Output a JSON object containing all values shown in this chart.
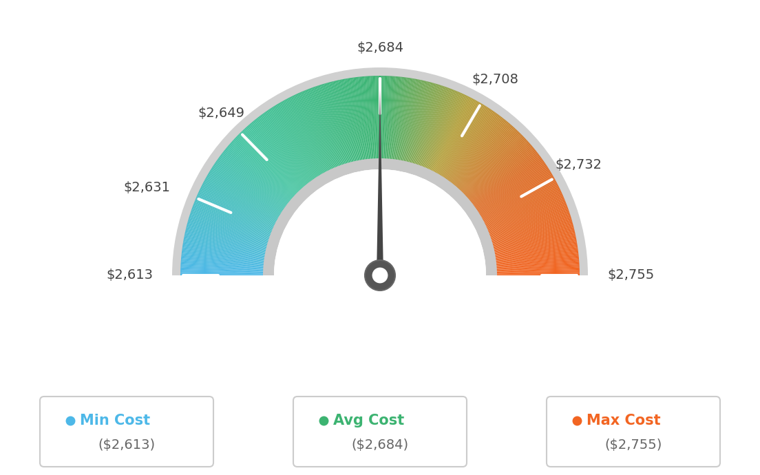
{
  "min_val": 2613,
  "max_val": 2755,
  "avg_val": 2684,
  "needle_value": 2684,
  "tick_labels": [
    "$2,613",
    "$2,631",
    "$2,649",
    "$2,684",
    "$2,708",
    "$2,732",
    "$2,755"
  ],
  "tick_values": [
    2613,
    2631,
    2649,
    2684,
    2708,
    2732,
    2755
  ],
  "legend_items": [
    {
      "label": "Min Cost",
      "value": "($2,613)",
      "color": "#4db8e8"
    },
    {
      "label": "Avg Cost",
      "value": "($2,684)",
      "color": "#3cb371"
    },
    {
      "label": "Max Cost",
      "value": "($2,755)",
      "color": "#f26522"
    }
  ],
  "background_color": "#ffffff",
  "color_stops": [
    [
      0.0,
      [
        77,
        184,
        232
      ]
    ],
    [
      0.25,
      [
        69,
        196,
        160
      ]
    ],
    [
      0.5,
      [
        60,
        179,
        113
      ]
    ],
    [
      0.65,
      [
        180,
        160,
        60
      ]
    ],
    [
      0.8,
      [
        220,
        110,
        40
      ]
    ],
    [
      1.0,
      [
        242,
        101,
        34
      ]
    ]
  ]
}
